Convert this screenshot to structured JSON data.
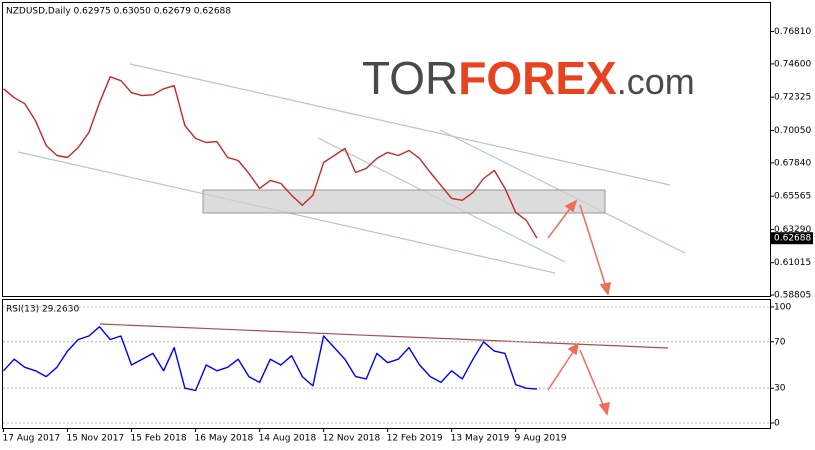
{
  "logo": {
    "prefix": "TOR",
    "main": "FOREX",
    "suffix": ".com"
  },
  "chart_data": [
    {
      "type": "line",
      "title": "NZDUSD,Daily  0.62975 0.63050 0.62679 0.62688",
      "series": [
        {
          "color": "#c62828",
          "values": [
            0.729,
            0.7229,
            0.7188,
            0.7072,
            0.6902,
            0.6834,
            0.682,
            0.6889,
            0.6991,
            0.7195,
            0.7372,
            0.7345,
            0.7263,
            0.7243,
            0.7249,
            0.729,
            0.7311,
            0.7038,
            0.695,
            0.6923,
            0.6929,
            0.682,
            0.68,
            0.6712,
            0.6609,
            0.6664,
            0.6643,
            0.6562,
            0.6494,
            0.6562,
            0.6786,
            0.6834,
            0.6882,
            0.6718,
            0.6746,
            0.6814,
            0.6855,
            0.6834,
            0.6868,
            0.6814,
            0.6718,
            0.663,
            0.6541,
            0.6528,
            0.6582,
            0.6677,
            0.6732,
            0.6609,
            0.6446,
            0.6391,
            0.62688
          ]
        }
      ],
      "ylim": [
        0.5874,
        0.7876
      ],
      "yticks": [
        {
          "value": 0.7681,
          "label": "0.76810"
        },
        {
          "value": 0.746,
          "label": "0.74600"
        },
        0.72325,
        {
          "value": 0.7005,
          "label": "0.70050"
        },
        {
          "value": 0.6784,
          "label": "0.67840"
        },
        0.65565,
        {
          "value": 0.6329,
          "label": "0.63290"
        },
        0.61015,
        0.58805
      ],
      "grid": false
    },
    {
      "type": "line",
      "title": "RSI(13) 29.2630",
      "categories": [
        "17 Aug 2017",
        null,
        null,
        null,
        null,
        null,
        "15 Nov 2017",
        null,
        null,
        null,
        null,
        null,
        "15 Feb 2018",
        null,
        null,
        null,
        null,
        null,
        "16 May 2018",
        null,
        null,
        null,
        null,
        null,
        "14 Aug 2018",
        null,
        null,
        null,
        null,
        null,
        "12 Nov 2018",
        null,
        null,
        null,
        null,
        null,
        "12 Feb 2019",
        null,
        null,
        null,
        null,
        null,
        "13 May 2019",
        null,
        null,
        null,
        null,
        null,
        "9 Aug 2019",
        null,
        null
      ],
      "series": [
        {
          "color": "#0000ff",
          "values": [
            45,
            55,
            48,
            45,
            40,
            48,
            62,
            72,
            75,
            83,
            72,
            75,
            50,
            55,
            60,
            45,
            65,
            30,
            28,
            50,
            45,
            48,
            55,
            40,
            35,
            55,
            50,
            58,
            40,
            32,
            75,
            65,
            55,
            40,
            38,
            60,
            52,
            55,
            65,
            50,
            40,
            35,
            45,
            38,
            55,
            70,
            62,
            60,
            33,
            30,
            29.263
          ]
        }
      ],
      "ylim": [
        -4.3,
        106
      ],
      "yticks": [
        100,
        70,
        30,
        0
      ],
      "grid": true
    }
  ]
}
